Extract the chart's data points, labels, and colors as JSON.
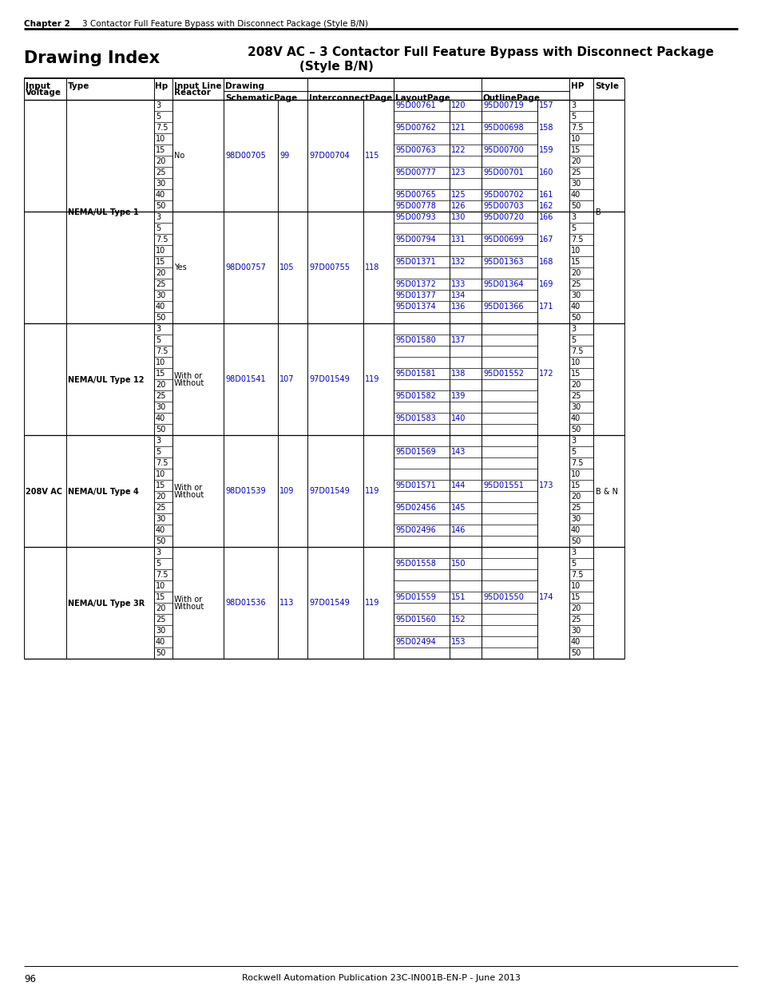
{
  "chapter_bold": "Chapter 2",
  "chapter_rest": "    3 Contactor Full Feature Bypass with Disconnect Package (Style B/N)",
  "title_left": "Drawing Index",
  "title_right_line1": "208V AC – 3 Contactor Full Feature Bypass with Disconnect Package",
  "title_right_line2": "(Style B/N)",
  "footer_page": "96",
  "footer_center": "Rockwell Automation Publication 23C-IN001B-EN-P - June 2013",
  "sections": [
    {
      "type": "NEMA/UL Type 1",
      "type_span_subs": 2,
      "input_voltage": "",
      "input_voltage_span": 0,
      "style": "B",
      "style_span_subs": 2,
      "subsections": [
        {
          "reactor": "No",
          "schematic_doc": "98D00705",
          "schematic_pg": "99",
          "interconnect_doc": "97D00704",
          "interconnect_pg": "115",
          "rows": [
            {
              "hp": "3",
              "layout_doc": "95D00761",
              "layout_pg": "120",
              "outline_doc": "95D00719",
              "outline_pg": "157"
            },
            {
              "hp": "5",
              "layout_doc": "",
              "layout_pg": "",
              "outline_doc": "",
              "outline_pg": ""
            },
            {
              "hp": "7.5",
              "layout_doc": "95D00762",
              "layout_pg": "121",
              "outline_doc": "95D00698",
              "outline_pg": "158"
            },
            {
              "hp": "10",
              "layout_doc": "",
              "layout_pg": "",
              "outline_doc": "",
              "outline_pg": ""
            },
            {
              "hp": "15",
              "layout_doc": "95D00763",
              "layout_pg": "122",
              "outline_doc": "95D00700",
              "outline_pg": "159"
            },
            {
              "hp": "20",
              "layout_doc": "",
              "layout_pg": "",
              "outline_doc": "",
              "outline_pg": ""
            },
            {
              "hp": "25",
              "layout_doc": "95D00777",
              "layout_pg": "123",
              "outline_doc": "95D00701",
              "outline_pg": "160"
            },
            {
              "hp": "30",
              "layout_doc": "",
              "layout_pg": "",
              "outline_doc": "",
              "outline_pg": ""
            },
            {
              "hp": "40",
              "layout_doc": "95D00765",
              "layout_pg": "125",
              "outline_doc": "95D00702",
              "outline_pg": "161"
            },
            {
              "hp": "50",
              "layout_doc": "95D00778",
              "layout_pg": "126",
              "outline_doc": "95D00703",
              "outline_pg": "162"
            }
          ]
        },
        {
          "reactor": "Yes",
          "schematic_doc": "98D00757",
          "schematic_pg": "105",
          "interconnect_doc": "97D00755",
          "interconnect_pg": "118",
          "rows": [
            {
              "hp": "3",
              "layout_doc": "95D00793",
              "layout_pg": "130",
              "outline_doc": "95D00720",
              "outline_pg": "166"
            },
            {
              "hp": "5",
              "layout_doc": "",
              "layout_pg": "",
              "outline_doc": "",
              "outline_pg": ""
            },
            {
              "hp": "7.5",
              "layout_doc": "95D00794",
              "layout_pg": "131",
              "outline_doc": "95D00699",
              "outline_pg": "167"
            },
            {
              "hp": "10",
              "layout_doc": "",
              "layout_pg": "",
              "outline_doc": "",
              "outline_pg": ""
            },
            {
              "hp": "15",
              "layout_doc": "95D01371",
              "layout_pg": "132",
              "outline_doc": "95D01363",
              "outline_pg": "168"
            },
            {
              "hp": "20",
              "layout_doc": "",
              "layout_pg": "",
              "outline_doc": "",
              "outline_pg": ""
            },
            {
              "hp": "25",
              "layout_doc": "95D01372",
              "layout_pg": "133",
              "outline_doc": "95D01364",
              "outline_pg": "169"
            },
            {
              "hp": "30",
              "layout_doc": "95D01377",
              "layout_pg": "134",
              "outline_doc": "",
              "outline_pg": ""
            },
            {
              "hp": "40",
              "layout_doc": "95D01374",
              "layout_pg": "136",
              "outline_doc": "95D01366",
              "outline_pg": "171"
            },
            {
              "hp": "50",
              "layout_doc": "",
              "layout_pg": "",
              "outline_doc": "",
              "outline_pg": ""
            }
          ]
        }
      ]
    },
    {
      "type": "NEMA/UL Type 12",
      "type_span_subs": 1,
      "input_voltage": "208V AC",
      "input_voltage_span": 3,
      "style": "B & N",
      "style_span_subs": 3,
      "subsections": [
        {
          "reactor": "With or\nWithout",
          "schematic_doc": "98D01541",
          "schematic_pg": "107",
          "interconnect_doc": "97D01549",
          "interconnect_pg": "119",
          "rows": [
            {
              "hp": "3",
              "layout_doc": "",
              "layout_pg": "",
              "outline_doc": "",
              "outline_pg": ""
            },
            {
              "hp": "5",
              "layout_doc": "95D01580",
              "layout_pg": "137",
              "outline_doc": "",
              "outline_pg": ""
            },
            {
              "hp": "7.5",
              "layout_doc": "",
              "layout_pg": "",
              "outline_doc": "",
              "outline_pg": ""
            },
            {
              "hp": "10",
              "layout_doc": "",
              "layout_pg": "",
              "outline_doc": "",
              "outline_pg": ""
            },
            {
              "hp": "15",
              "layout_doc": "95D01581",
              "layout_pg": "138",
              "outline_doc": "95D01552",
              "outline_pg": "172"
            },
            {
              "hp": "20",
              "layout_doc": "",
              "layout_pg": "",
              "outline_doc": "",
              "outline_pg": ""
            },
            {
              "hp": "25",
              "layout_doc": "95D01582",
              "layout_pg": "139",
              "outline_doc": "",
              "outline_pg": ""
            },
            {
              "hp": "30",
              "layout_doc": "",
              "layout_pg": "",
              "outline_doc": "",
              "outline_pg": ""
            },
            {
              "hp": "40",
              "layout_doc": "95D01583",
              "layout_pg": "140",
              "outline_doc": "",
              "outline_pg": ""
            },
            {
              "hp": "50",
              "layout_doc": "",
              "layout_pg": "",
              "outline_doc": "",
              "outline_pg": ""
            }
          ]
        }
      ]
    },
    {
      "type": "NEMA/UL Type 4",
      "type_span_subs": 1,
      "input_voltage": "",
      "input_voltage_span": 0,
      "style": "",
      "style_span_subs": 0,
      "subsections": [
        {
          "reactor": "With or\nWithout",
          "schematic_doc": "98D01539",
          "schematic_pg": "109",
          "interconnect_doc": "97D01549",
          "interconnect_pg": "119",
          "rows": [
            {
              "hp": "3",
              "layout_doc": "",
              "layout_pg": "",
              "outline_doc": "",
              "outline_pg": ""
            },
            {
              "hp": "5",
              "layout_doc": "95D01569",
              "layout_pg": "143",
              "outline_doc": "",
              "outline_pg": ""
            },
            {
              "hp": "7.5",
              "layout_doc": "",
              "layout_pg": "",
              "outline_doc": "",
              "outline_pg": ""
            },
            {
              "hp": "10",
              "layout_doc": "",
              "layout_pg": "",
              "outline_doc": "",
              "outline_pg": ""
            },
            {
              "hp": "15",
              "layout_doc": "95D01571",
              "layout_pg": "144",
              "outline_doc": "95D01551",
              "outline_pg": "173"
            },
            {
              "hp": "20",
              "layout_doc": "",
              "layout_pg": "",
              "outline_doc": "",
              "outline_pg": ""
            },
            {
              "hp": "25",
              "layout_doc": "95D02456",
              "layout_pg": "145",
              "outline_doc": "",
              "outline_pg": ""
            },
            {
              "hp": "30",
              "layout_doc": "",
              "layout_pg": "",
              "outline_doc": "",
              "outline_pg": ""
            },
            {
              "hp": "40",
              "layout_doc": "95D02496",
              "layout_pg": "146",
              "outline_doc": "",
              "outline_pg": ""
            },
            {
              "hp": "50",
              "layout_doc": "",
              "layout_pg": "",
              "outline_doc": "",
              "outline_pg": ""
            }
          ]
        }
      ]
    },
    {
      "type": "NEMA/UL Type 3R",
      "type_span_subs": 1,
      "input_voltage": "",
      "input_voltage_span": 0,
      "style": "",
      "style_span_subs": 0,
      "subsections": [
        {
          "reactor": "With or\nWithout",
          "schematic_doc": "98D01536",
          "schematic_pg": "113",
          "interconnect_doc": "97D01549",
          "interconnect_pg": "119",
          "rows": [
            {
              "hp": "3",
              "layout_doc": "",
              "layout_pg": "",
              "outline_doc": "",
              "outline_pg": ""
            },
            {
              "hp": "5",
              "layout_doc": "95D01558",
              "layout_pg": "150",
              "outline_doc": "",
              "outline_pg": ""
            },
            {
              "hp": "7.5",
              "layout_doc": "",
              "layout_pg": "",
              "outline_doc": "",
              "outline_pg": ""
            },
            {
              "hp": "10",
              "layout_doc": "",
              "layout_pg": "",
              "outline_doc": "",
              "outline_pg": ""
            },
            {
              "hp": "15",
              "layout_doc": "95D01559",
              "layout_pg": "151",
              "outline_doc": "95D01550",
              "outline_pg": "174"
            },
            {
              "hp": "20",
              "layout_doc": "",
              "layout_pg": "",
              "outline_doc": "",
              "outline_pg": ""
            },
            {
              "hp": "25",
              "layout_doc": "95D01560",
              "layout_pg": "152",
              "outline_doc": "",
              "outline_pg": ""
            },
            {
              "hp": "30",
              "layout_doc": "",
              "layout_pg": "",
              "outline_doc": "",
              "outline_pg": ""
            },
            {
              "hp": "40",
              "layout_doc": "95D02494",
              "layout_pg": "153",
              "outline_doc": "",
              "outline_pg": ""
            },
            {
              "hp": "50",
              "layout_doc": "",
              "layout_pg": "",
              "outline_doc": "",
              "outline_pg": ""
            }
          ]
        }
      ]
    }
  ]
}
